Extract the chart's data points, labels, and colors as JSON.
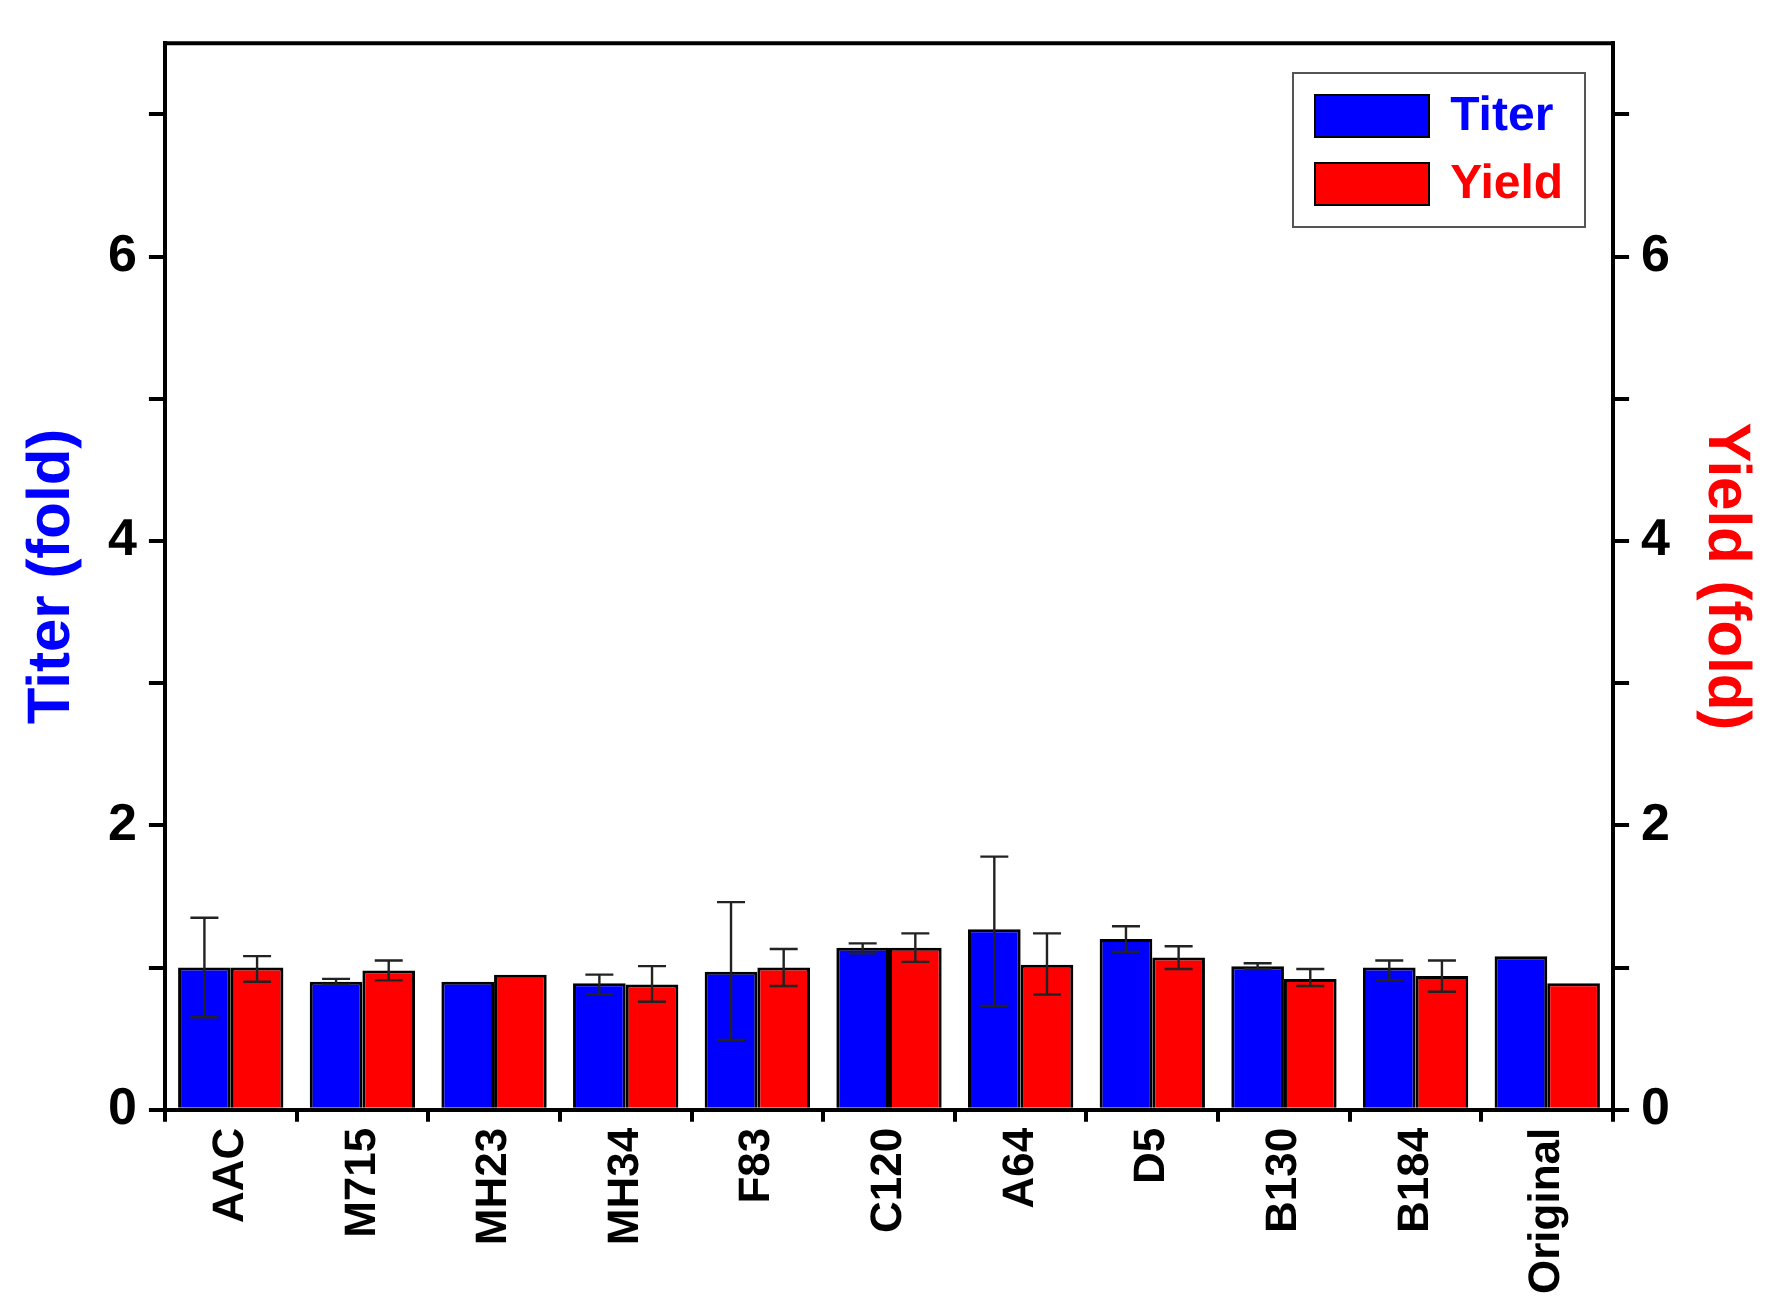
{
  "chart_data": {
    "type": "bar",
    "ylabel": "Titer (fold)",
    "y2label": "Yield (fold)",
    "categories": [
      "AAC",
      "M715",
      "MH23",
      "MH34",
      "F83",
      "C120",
      "A64",
      "D5",
      "B130",
      "B184",
      "Original"
    ],
    "series": [
      {
        "name": "Titer",
        "color": "#0000ff",
        "values": [
          1.0,
          0.9,
          0.9,
          0.89,
          0.97,
          1.14,
          1.27,
          1.2,
          1.01,
          1.0,
          1.08
        ],
        "errors": [
          [
            0.65,
            1.35
          ],
          [
            0.88,
            0.92
          ],
          null,
          [
            0.81,
            0.95
          ],
          [
            0.49,
            1.46
          ],
          [
            1.1,
            1.17
          ],
          [
            0.73,
            1.78
          ],
          [
            1.11,
            1.29
          ],
          [
            0.99,
            1.03
          ],
          [
            0.91,
            1.05
          ],
          null
        ]
      },
      {
        "name": "Yield",
        "color": "#ff0000",
        "axis": "y2",
        "values": [
          1.0,
          0.98,
          0.95,
          0.88,
          1.0,
          1.14,
          1.02,
          1.07,
          0.92,
          0.94,
          0.89
        ],
        "errors": [
          [
            0.9,
            1.08
          ],
          [
            0.91,
            1.05
          ],
          null,
          [
            0.76,
            1.01
          ],
          [
            0.87,
            1.13
          ],
          [
            1.04,
            1.24
          ],
          [
            0.81,
            1.24
          ],
          [
            0.99,
            1.15
          ],
          [
            0.87,
            0.99
          ],
          [
            0.83,
            1.05
          ],
          null
        ]
      }
    ],
    "ylim": [
      0,
      7.5
    ],
    "yticks": [
      0,
      {
        "value": 1,
        "label": null
      },
      2,
      {
        "value": 3,
        "label": null
      },
      4,
      {
        "value": 5,
        "label": null
      },
      6,
      {
        "value": 7,
        "label": null
      }
    ],
    "y2lim": [
      0,
      7.5
    ],
    "y2ticks": [
      0,
      {
        "value": 1,
        "label": null
      },
      2,
      {
        "value": 3,
        "label": null
      },
      4,
      {
        "value": 5,
        "label": null
      },
      6,
      {
        "value": 7,
        "label": null
      }
    ],
    "grid": false,
    "legend": "top right"
  }
}
